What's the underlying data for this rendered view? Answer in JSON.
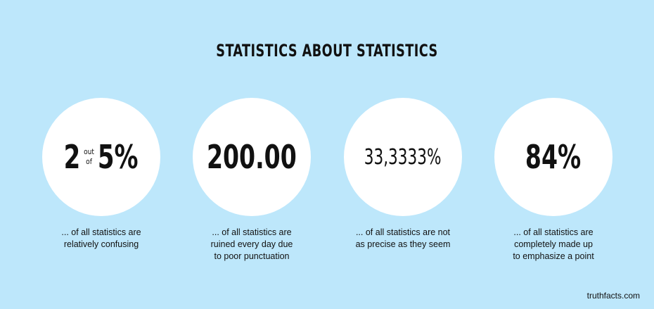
{
  "title": "STATISTICS ABOUT STATISTICS",
  "stats": [
    {
      "value_left": "2",
      "value_small_top": "out",
      "value_small_bottom": "of",
      "value_right": "5%",
      "caption_lines": [
        "... of all statistics are",
        "relatively confusing"
      ]
    },
    {
      "value": "200.00",
      "caption_lines": [
        "... of all statistics are",
        "ruined every day due",
        "to poor punctuation"
      ]
    },
    {
      "value": "33,3333%",
      "caption_lines": [
        "... of all statistics are not",
        "as precise as they seem"
      ]
    },
    {
      "value": "84%",
      "caption_lines": [
        "... of all statistics are",
        "completely made up",
        "to emphasize a point"
      ]
    }
  ],
  "credit": "truthfacts.com",
  "colors": {
    "background": "#bde7fb",
    "circle": "#ffffff",
    "text": "#111111"
  }
}
